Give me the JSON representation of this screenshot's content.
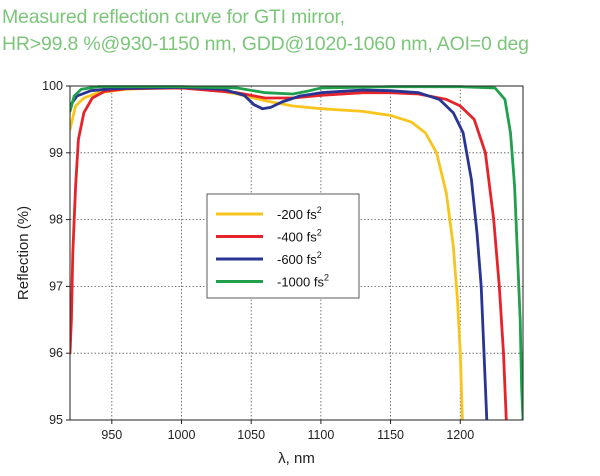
{
  "chart_data": {
    "type": "line",
    "title_line1": "Measured reflection curve for GTI mirror,",
    "title_line2": "HR>99.8 %@930-1150 nm, GDD@1020-1060 nm, AOI=0 deg",
    "xlabel": "λ, nm",
    "ylabel": "Reflection (%)",
    "xlim": [
      920,
      1245
    ],
    "ylim": [
      95,
      100
    ],
    "x_ticks": [
      950,
      1000,
      1050,
      1100,
      1150,
      1200
    ],
    "y_ticks": [
      95,
      96,
      97,
      98,
      99,
      100
    ],
    "grid": true,
    "legend_position": "center",
    "series": [
      {
        "name": "-200 fs",
        "sup": "2",
        "color": "#f7c51e",
        "points": [
          [
            920,
            99.35
          ],
          [
            924,
            99.7
          ],
          [
            930,
            99.82
          ],
          [
            940,
            99.9
          ],
          [
            960,
            99.95
          ],
          [
            1000,
            99.98
          ],
          [
            1020,
            99.96
          ],
          [
            1040,
            99.88
          ],
          [
            1060,
            99.78
          ],
          [
            1080,
            99.7
          ],
          [
            1100,
            99.66
          ],
          [
            1130,
            99.62
          ],
          [
            1150,
            99.56
          ],
          [
            1165,
            99.46
          ],
          [
            1175,
            99.3
          ],
          [
            1183,
            99.0
          ],
          [
            1190,
            98.4
          ],
          [
            1195,
            97.6
          ],
          [
            1198,
            96.8
          ],
          [
            1200,
            96.0
          ],
          [
            1201.5,
            95.0
          ]
        ]
      },
      {
        "name": "-400 fs",
        "sup": "2",
        "color": "#e5232b",
        "points": [
          [
            920,
            96.0
          ],
          [
            921,
            96.5
          ],
          [
            922,
            97.5
          ],
          [
            924,
            98.5
          ],
          [
            926,
            99.2
          ],
          [
            930,
            99.6
          ],
          [
            936,
            99.82
          ],
          [
            945,
            99.92
          ],
          [
            960,
            99.96
          ],
          [
            1000,
            99.97
          ],
          [
            1040,
            99.9
          ],
          [
            1060,
            99.82
          ],
          [
            1080,
            99.82
          ],
          [
            1100,
            99.86
          ],
          [
            1130,
            99.9
          ],
          [
            1150,
            99.9
          ],
          [
            1170,
            99.88
          ],
          [
            1190,
            99.8
          ],
          [
            1200,
            99.7
          ],
          [
            1210,
            99.5
          ],
          [
            1218,
            99.0
          ],
          [
            1224,
            98.0
          ],
          [
            1228,
            97.0
          ],
          [
            1231,
            96.0
          ],
          [
            1233,
            95.0
          ]
        ]
      },
      {
        "name": "-600 fs",
        "sup": "2",
        "color": "#283593",
        "points": [
          [
            920,
            99.7
          ],
          [
            925,
            99.85
          ],
          [
            935,
            99.93
          ],
          [
            950,
            99.96
          ],
          [
            1000,
            99.98
          ],
          [
            1030,
            99.95
          ],
          [
            1045,
            99.86
          ],
          [
            1052,
            99.72
          ],
          [
            1058,
            99.66
          ],
          [
            1064,
            99.68
          ],
          [
            1072,
            99.76
          ],
          [
            1085,
            99.85
          ],
          [
            1100,
            99.9
          ],
          [
            1130,
            99.94
          ],
          [
            1150,
            99.93
          ],
          [
            1170,
            99.9
          ],
          [
            1185,
            99.8
          ],
          [
            1195,
            99.6
          ],
          [
            1202,
            99.3
          ],
          [
            1208,
            98.6
          ],
          [
            1212,
            97.8
          ],
          [
            1215,
            97.0
          ],
          [
            1217,
            96.0
          ],
          [
            1219,
            95.0
          ]
        ]
      },
      {
        "name": "-1000 fs",
        "sup": "2",
        "color": "#20a04c",
        "points": [
          [
            920,
            99.62
          ],
          [
            923,
            99.85
          ],
          [
            928,
            99.95
          ],
          [
            940,
            99.99
          ],
          [
            1000,
            99.99
          ],
          [
            1040,
            99.97
          ],
          [
            1060,
            99.9
          ],
          [
            1080,
            99.88
          ],
          [
            1090,
            99.92
          ],
          [
            1100,
            99.97
          ],
          [
            1150,
            99.99
          ],
          [
            1200,
            99.99
          ],
          [
            1225,
            99.97
          ],
          [
            1232,
            99.8
          ],
          [
            1236,
            99.3
          ],
          [
            1239,
            98.5
          ],
          [
            1241,
            97.5
          ],
          [
            1243,
            96.5
          ],
          [
            1244,
            95.5
          ],
          [
            1245,
            95.0
          ]
        ]
      }
    ]
  }
}
